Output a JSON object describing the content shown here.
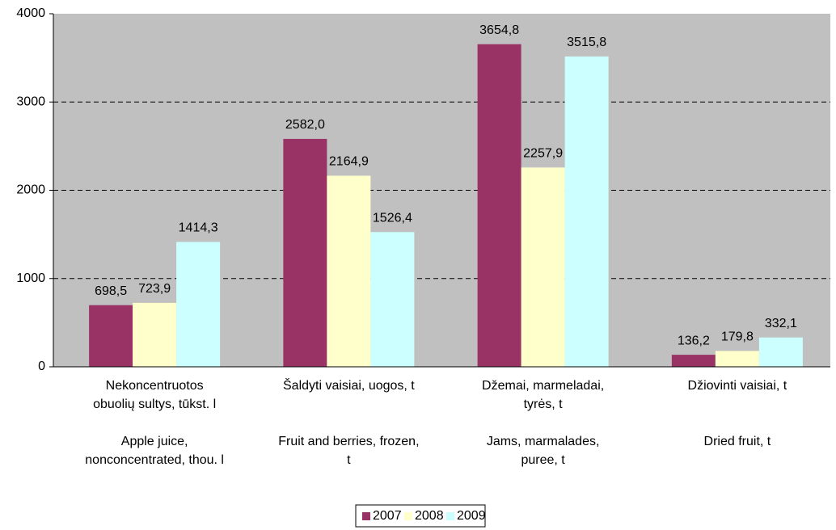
{
  "chart_data": {
    "type": "bar",
    "categories": [
      "Nekoncentruotos\nobuolių sultys, tūkst. l\n\nApple juice,\nnonconcentrated, thou. l",
      "Šaldyti vaisiai, uogos, t\n\n\nFruit and berries, frozen,\nt",
      "Džemai, marmeladai,\ntyrės, t\n\nJams, marmalades,\npuree, t",
      "Džiovinti vaisiai, t\n\n\nDried fruit, t"
    ],
    "series": [
      {
        "name": "2007",
        "color": "#993366",
        "values": [
          698.5,
          2582.0,
          3654.8,
          136.2
        ],
        "value_labels": [
          "698,5",
          "2582,0",
          "3654,8",
          "136,2"
        ]
      },
      {
        "name": "2008",
        "color": "#ffffcc",
        "values": [
          723.9,
          2164.9,
          2257.9,
          179.8
        ],
        "value_labels": [
          "723,9",
          "2164,9",
          "2257,9",
          "179,8"
        ]
      },
      {
        "name": "2009",
        "color": "#ccffff",
        "values": [
          1414.3,
          1526.4,
          3515.8,
          332.1
        ],
        "value_labels": [
          "1414,3",
          "1526,4",
          "3515,8",
          "332,1"
        ]
      }
    ],
    "ylim": [
      0,
      4000
    ],
    "yticks": [
      0,
      1000,
      2000,
      3000,
      4000
    ],
    "grid": true,
    "legend": "bottom"
  }
}
